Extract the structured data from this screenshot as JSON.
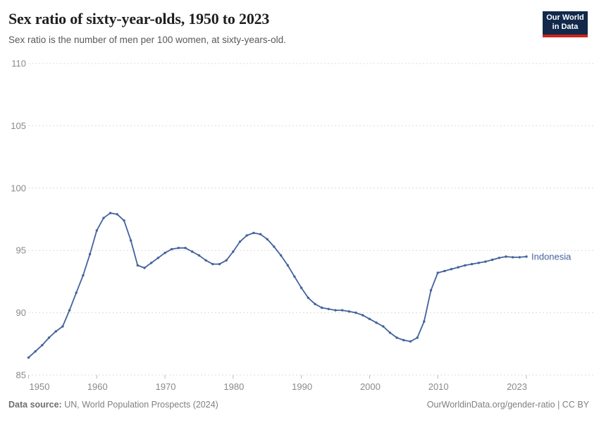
{
  "header": {
    "title": "Sex ratio of sixty-year-olds, 1950 to 2023",
    "subtitle": "Sex ratio is the number of men per 100 women, at sixty-years-old.",
    "logo": {
      "line1": "Our World",
      "line2": "in Data"
    }
  },
  "footer": {
    "source_label": "Data source:",
    "source_text": " UN, World Population Prospects (2024)",
    "link_text": "OurWorldinData.org/gender-ratio | CC BY"
  },
  "colors": {
    "line": "#44639c",
    "grid": "#dcdcdc",
    "tick": "#b8b8b8",
    "axis_text": "#8a8a8a",
    "title": "#1f1f1f",
    "subtitle": "#595959",
    "footer": "#808080",
    "logo_bg": "#12294b",
    "logo_red": "#cf2318",
    "logo_text": "#ffffff"
  },
  "chart_data": {
    "type": "line",
    "title": "Sex ratio of sixty-year-olds, 1950 to 2023",
    "subtitle": "Sex ratio is the number of men per 100 women, at sixty-years-old.",
    "xlabel": "",
    "ylabel": "",
    "xlim": [
      1950,
      2023
    ],
    "ylim": [
      85,
      110
    ],
    "x_ticks": [
      1950,
      1960,
      1970,
      1980,
      1990,
      2000,
      2010,
      2023
    ],
    "y_ticks": [
      85,
      90,
      95,
      100,
      105,
      110
    ],
    "grid": "horizontal-dashed",
    "legend": "end-of-line-label",
    "years": [
      1950,
      1951,
      1952,
      1953,
      1954,
      1955,
      1956,
      1957,
      1958,
      1959,
      1960,
      1961,
      1962,
      1963,
      1964,
      1965,
      1966,
      1967,
      1968,
      1969,
      1970,
      1971,
      1972,
      1973,
      1974,
      1975,
      1976,
      1977,
      1978,
      1979,
      1980,
      1981,
      1982,
      1983,
      1984,
      1985,
      1986,
      1987,
      1988,
      1989,
      1990,
      1991,
      1992,
      1993,
      1994,
      1995,
      1996,
      1997,
      1998,
      1999,
      2000,
      2001,
      2002,
      2003,
      2004,
      2005,
      2006,
      2007,
      2008,
      2009,
      2010,
      2011,
      2012,
      2013,
      2014,
      2015,
      2016,
      2017,
      2018,
      2019,
      2020,
      2021,
      2022,
      2023
    ],
    "series": [
      {
        "name": "Indonesia",
        "color": "#44639c",
        "values": [
          86.4,
          86.9,
          87.4,
          88.0,
          88.5,
          88.9,
          90.2,
          91.6,
          93.0,
          94.7,
          96.6,
          97.6,
          98.0,
          97.9,
          97.4,
          95.8,
          93.8,
          93.6,
          94.0,
          94.4,
          94.8,
          95.1,
          95.2,
          95.2,
          94.9,
          94.6,
          94.2,
          93.9,
          93.9,
          94.2,
          94.9,
          95.7,
          96.2,
          96.4,
          96.3,
          95.9,
          95.3,
          94.6,
          93.8,
          92.9,
          92.0,
          91.2,
          90.7,
          90.4,
          90.3,
          90.2,
          90.2,
          90.1,
          90.0,
          89.8,
          89.5,
          89.2,
          88.9,
          88.4,
          88.0,
          87.8,
          87.7,
          88.0,
          89.3,
          91.8,
          93.2,
          93.35,
          93.5,
          93.65,
          93.8,
          93.9,
          94.0,
          94.1,
          94.25,
          94.4,
          94.5,
          94.45,
          94.45,
          94.5
        ]
      }
    ]
  }
}
